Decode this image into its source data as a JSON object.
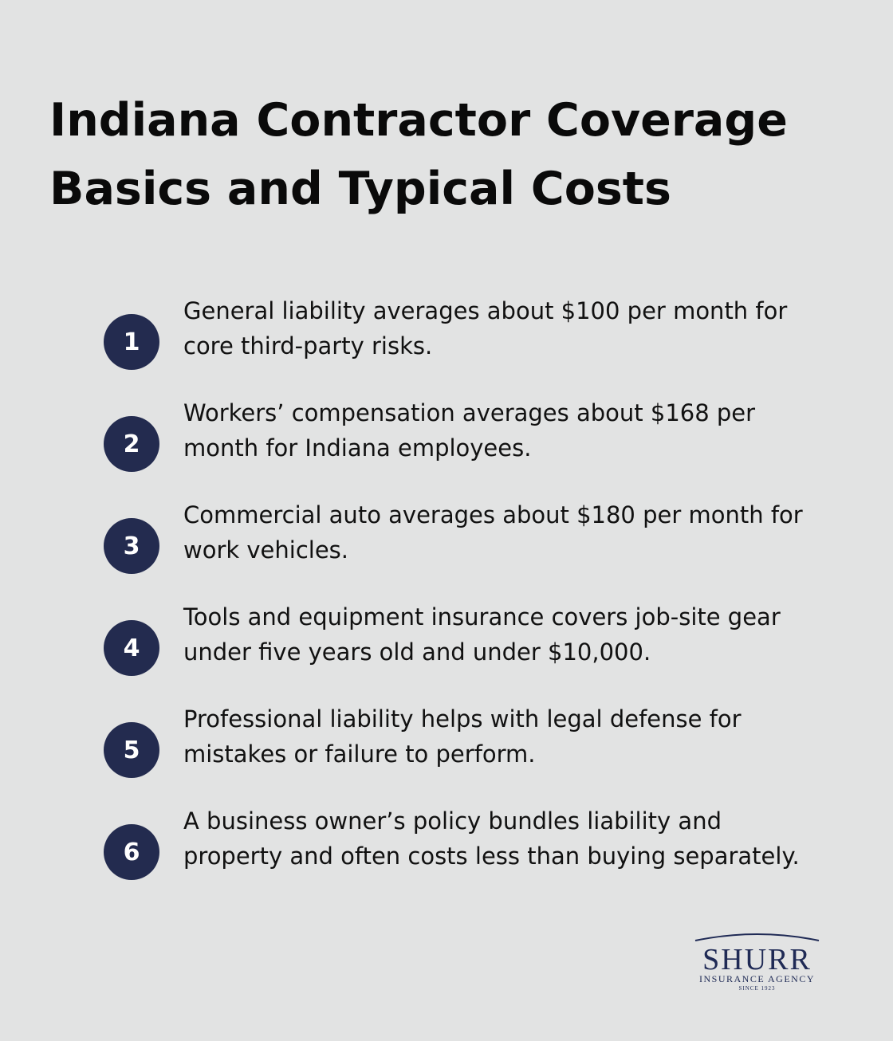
{
  "header": {
    "title": "Indiana Contractor Coverage Basics and Typical Costs"
  },
  "items": [
    {
      "number": "1",
      "text": "General liability averages about $100 per month for core third-party risks."
    },
    {
      "number": "2",
      "text": "Workers’ compensation averages about $168 per month for Indiana employees."
    },
    {
      "number": "3",
      "text": "Commercial auto averages about $180 per month for work vehicles."
    },
    {
      "number": "4",
      "text": "Tools and equipment insurance covers job-site gear under five years old and under $10,000."
    },
    {
      "number": "5",
      "text": "Professional liability helps with legal defense for mistakes or failure to perform."
    },
    {
      "number": "6",
      "text": "A business owner’s policy bundles liability and property and often costs less than buying separately."
    }
  ],
  "logo": {
    "name": "SHURR",
    "subtitle": "INSURANCE AGENCY",
    "since": "SINCE 1923"
  }
}
